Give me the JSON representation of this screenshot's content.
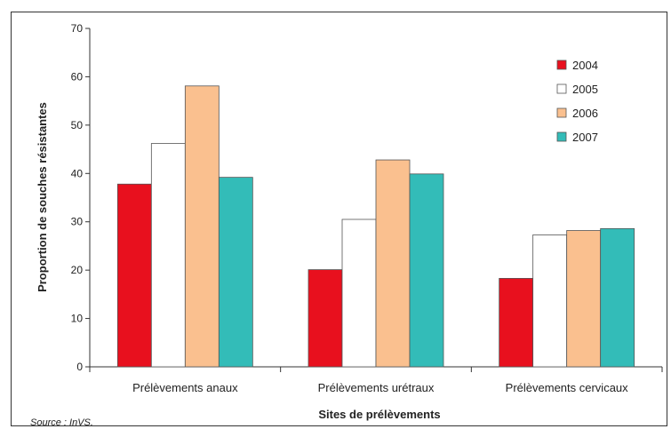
{
  "chart_data": {
    "type": "bar",
    "categories": [
      "Prélèvements anaux",
      "Prélèvements urétraux",
      "Prélèvements cervicaux"
    ],
    "series": [
      {
        "name": "2004",
        "color": "#e8101e",
        "values": [
          37.8,
          20.1,
          18.3
        ]
      },
      {
        "name": "2005",
        "color": "#ffffff",
        "values": [
          46.2,
          30.5,
          27.3
        ]
      },
      {
        "name": "2006",
        "color": "#fac08f",
        "values": [
          58.1,
          42.8,
          28.2
        ]
      },
      {
        "name": "2007",
        "color": "#33bcb8",
        "values": [
          39.2,
          39.9,
          28.6
        ]
      }
    ],
    "xlabel": "Sites de prélèvements",
    "ylabel": "Proportion de souches résistantes",
    "ylim": [
      0,
      70
    ],
    "yticks": [
      "0",
      "10",
      "20",
      "30",
      "40",
      "50",
      "60",
      "70"
    ],
    "grid": false,
    "legend_position": "top-right"
  },
  "source": "Source : InVS."
}
